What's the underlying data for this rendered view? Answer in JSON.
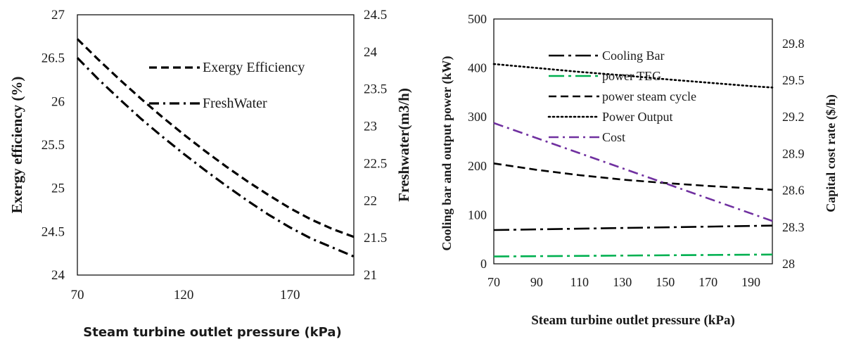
{
  "chart_data": [
    {
      "type": "line",
      "title": "",
      "xlabel": "Steam turbine outlet pressure (kPa)",
      "ylabel": "Exergy efficiency (%)",
      "y2label": "Freshwater(m3/h)",
      "xlim": [
        70,
        200
      ],
      "ylim": [
        24,
        27
      ],
      "y2lim": [
        21,
        24.5
      ],
      "x_ticks": [
        "70",
        "120",
        "170"
      ],
      "y_ticks": [
        "24",
        "24.5",
        "25",
        "25.5",
        "26",
        "26.5",
        "27"
      ],
      "y2_ticks": [
        "21",
        "21.5",
        "22",
        "22.5",
        "23",
        "23.5",
        "24",
        "24.5"
      ],
      "legend_position": "top-right",
      "series": [
        {
          "name": "Exergy Efficiency",
          "axis": "left",
          "style": "dashed",
          "color": "#000000",
          "x": [
            70,
            80,
            90,
            100,
            110,
            120,
            130,
            140,
            150,
            160,
            170,
            180,
            190,
            200
          ],
          "values": [
            26.72,
            26.48,
            26.25,
            26.03,
            25.82,
            25.62,
            25.43,
            25.25,
            25.08,
            24.92,
            24.77,
            24.64,
            24.53,
            24.44
          ]
        },
        {
          "name": "FreshWater",
          "axis": "right",
          "style": "dash-dot",
          "color": "#000000",
          "x": [
            70,
            80,
            90,
            100,
            110,
            120,
            130,
            140,
            150,
            160,
            170,
            180,
            190,
            200
          ],
          "values": [
            23.92,
            23.63,
            23.36,
            23.1,
            22.86,
            22.63,
            22.41,
            22.2,
            22.0,
            21.81,
            21.64,
            21.49,
            21.37,
            21.25
          ]
        }
      ]
    },
    {
      "type": "line",
      "title": "",
      "xlabel": "Steam turbine outlet pressure (kPa)",
      "ylabel": "Cooling bar and output power (kW)",
      "y2label": "Capital cost rate ($/h)",
      "xlim": [
        70,
        200
      ],
      "ylim": [
        0,
        500
      ],
      "y2lim": [
        28,
        30
      ],
      "x_ticks": [
        "70",
        "90",
        "110",
        "130",
        "150",
        "170",
        "190"
      ],
      "y_ticks": [
        "0",
        "100",
        "200",
        "300",
        "400",
        "500"
      ],
      "y2_ticks": [
        "28",
        "28.3",
        "28.6",
        "28.9",
        "29.2",
        "29.5",
        "29.8"
      ],
      "legend_position": "top-right",
      "series": [
        {
          "name": "Cooling Bar",
          "axis": "left",
          "style": "long-dash-dot",
          "color": "#000000",
          "x": [
            70,
            200
          ],
          "values": [
            69,
            78
          ]
        },
        {
          "name": "power TEG",
          "axis": "left",
          "style": "long-dash-dot",
          "color": "#00b050",
          "x": [
            70,
            200
          ],
          "values": [
            15,
            19
          ]
        },
        {
          "name": "power  steam cycle",
          "axis": "left",
          "style": "dashed",
          "color": "#000000",
          "x": [
            70,
            90,
            110,
            130,
            150,
            170,
            190,
            200
          ],
          "values": [
            205,
            192,
            181,
            172,
            165,
            159,
            154,
            151
          ]
        },
        {
          "name": "Power Output",
          "axis": "left",
          "style": "dotted",
          "color": "#000000",
          "x": [
            70,
            90,
            110,
            130,
            150,
            170,
            190,
            200
          ],
          "values": [
            408,
            400,
            392,
            385,
            377,
            370,
            363,
            360
          ]
        },
        {
          "name": "Cost",
          "axis": "right",
          "style": "dash-dot",
          "color": "#7030a0",
          "x": [
            70,
            200
          ],
          "values": [
            29.15,
            28.35
          ]
        }
      ]
    }
  ]
}
